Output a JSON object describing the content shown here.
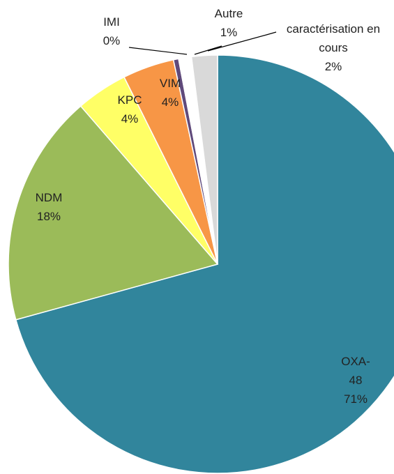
{
  "chart_data": {
    "type": "pie",
    "categories": [
      "OXA-48",
      "NDM",
      "KPC",
      "VIM",
      "IMI",
      "Autre",
      "caractérisation en cours"
    ],
    "values": [
      71,
      18,
      4,
      4,
      0.4,
      1,
      2
    ],
    "value_labels": [
      "71%",
      "18%",
      "4%",
      "4%",
      "0%",
      "1%",
      "2%"
    ],
    "colors": [
      "#31859c",
      "#9bbb59",
      "#ffff66",
      "#f79646",
      "#604a7b",
      "#ffffff",
      "#d9d9d9"
    ]
  }
}
